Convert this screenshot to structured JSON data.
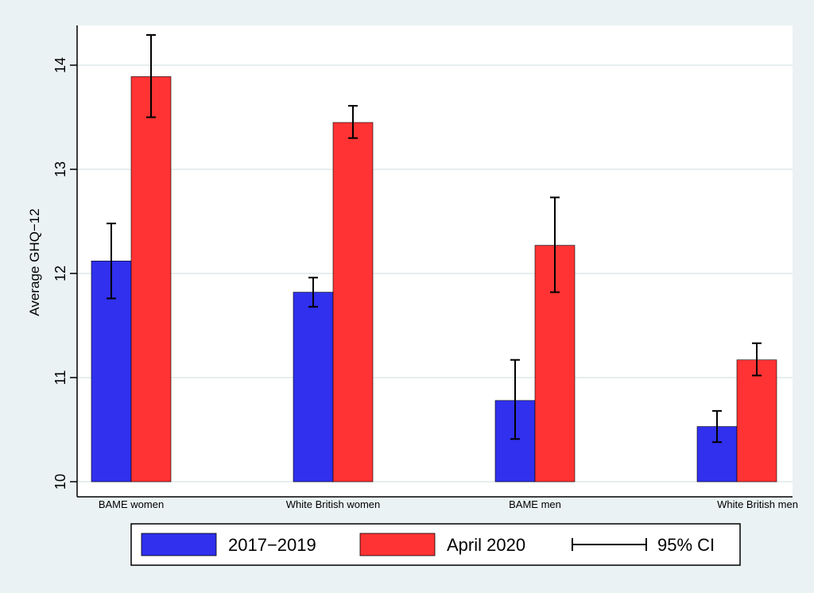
{
  "chart_data": {
    "type": "bar",
    "title": "",
    "xlabel": "",
    "ylabel": "Average GHQ−12",
    "ylim": [
      10,
      14.4
    ],
    "yticks": [
      10,
      11,
      12,
      13,
      14
    ],
    "grid": true,
    "legend_position": "bottom",
    "categories": [
      "BAME women",
      "White British women",
      "BAME men",
      "White British men"
    ],
    "series": [
      {
        "name": "2017−2019",
        "color": "#3030ee",
        "values": [
          12.12,
          11.82,
          10.78,
          10.53
        ],
        "ci_low": [
          11.76,
          11.68,
          10.41,
          10.38
        ],
        "ci_high": [
          12.48,
          11.96,
          11.17,
          10.68
        ]
      },
      {
        "name": "April 2020",
        "color": "#ff3333",
        "values": [
          13.89,
          13.45,
          12.27,
          11.17
        ],
        "ci_low": [
          13.5,
          13.3,
          11.82,
          11.02
        ],
        "ci_high": [
          14.29,
          13.61,
          12.73,
          11.33
        ]
      }
    ],
    "ci_legend_label": "95% CI"
  }
}
